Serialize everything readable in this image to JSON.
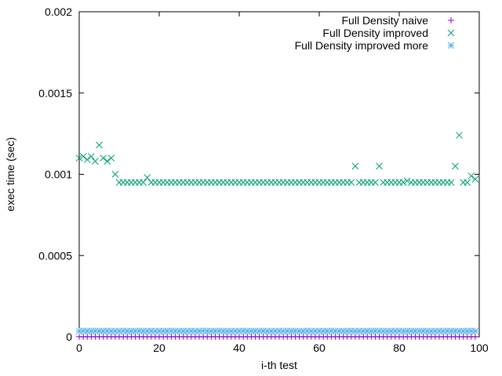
{
  "chart_data": {
    "type": "scatter",
    "xlabel": "i-th test",
    "ylabel": "exec time (sec)",
    "xlim": [
      0,
      100
    ],
    "ylim": [
      0,
      0.002
    ],
    "x_ticks": [
      0,
      20,
      40,
      60,
      80,
      100
    ],
    "x_tick_labels": [
      "0",
      "20",
      "40",
      "60",
      "80",
      "100"
    ],
    "y_ticks": [
      0,
      0.0005,
      0.001,
      0.0015,
      0.002
    ],
    "y_tick_labels": [
      "0",
      "0.0005",
      "0.001",
      "0.0015",
      "0.002"
    ],
    "grid": false,
    "legend_position": "top-right",
    "series": [
      {
        "name": "Full Density naive",
        "marker": "plus",
        "color": "#9400d3",
        "x": [
          0,
          1,
          2,
          3,
          4,
          5,
          6,
          7,
          8,
          9,
          10,
          11,
          12,
          13,
          14,
          15,
          16,
          17,
          18,
          19,
          20,
          21,
          22,
          23,
          24,
          25,
          26,
          27,
          28,
          29,
          30,
          31,
          32,
          33,
          34,
          35,
          36,
          37,
          38,
          39,
          40,
          41,
          42,
          43,
          44,
          45,
          46,
          47,
          48,
          49,
          50,
          51,
          52,
          53,
          54,
          55,
          56,
          57,
          58,
          59,
          60,
          61,
          62,
          63,
          64,
          65,
          66,
          67,
          68,
          69,
          70,
          71,
          72,
          73,
          74,
          75,
          76,
          77,
          78,
          79,
          80,
          81,
          82,
          83,
          84,
          85,
          86,
          87,
          88,
          89,
          90,
          91,
          92,
          93,
          94,
          95,
          96,
          97,
          98,
          99
        ],
        "y": [
          1e-06,
          1e-06,
          1e-06,
          1e-06,
          1e-06,
          1e-06,
          1e-06,
          1e-06,
          1e-06,
          1e-06,
          1e-06,
          1e-06,
          1e-06,
          1e-06,
          1e-06,
          1e-06,
          1e-06,
          1e-06,
          1e-06,
          1e-06,
          1e-06,
          1e-06,
          1e-06,
          1e-06,
          1e-06,
          1e-06,
          1e-06,
          1e-06,
          1e-06,
          1e-06,
          1e-06,
          1e-06,
          1e-06,
          1e-06,
          1e-06,
          1e-06,
          1e-06,
          1e-06,
          1e-06,
          1e-06,
          1e-06,
          1e-06,
          1e-06,
          1e-06,
          1e-06,
          1e-06,
          1e-06,
          1e-06,
          1e-06,
          1e-06,
          1e-06,
          1e-06,
          1e-06,
          1e-06,
          1e-06,
          1e-06,
          1e-06,
          1e-06,
          1e-06,
          1e-06,
          1e-06,
          1e-06,
          1e-06,
          1e-06,
          1e-06,
          1e-06,
          1e-06,
          1e-06,
          1e-06,
          1e-06,
          1e-06,
          1e-06,
          1e-06,
          1e-06,
          1e-06,
          1e-06,
          1e-06,
          1e-06,
          1e-06,
          1e-06,
          1e-06,
          1e-06,
          1e-06,
          1e-06,
          1e-06,
          1e-06,
          1e-06,
          1e-06,
          1e-06,
          1e-06,
          1e-06,
          1e-06,
          1e-06,
          1e-06,
          1e-06,
          1e-06,
          1e-06,
          1e-06,
          1e-06,
          1e-06
        ]
      },
      {
        "name": "Full Density improved",
        "marker": "cross",
        "color": "#009e73",
        "x": [
          0,
          1,
          2,
          3,
          4,
          5,
          6,
          7,
          8,
          9,
          10,
          11,
          12,
          13,
          14,
          15,
          16,
          17,
          18,
          19,
          20,
          21,
          22,
          23,
          24,
          25,
          26,
          27,
          28,
          29,
          30,
          31,
          32,
          33,
          34,
          35,
          36,
          37,
          38,
          39,
          40,
          41,
          42,
          43,
          44,
          45,
          46,
          47,
          48,
          49,
          50,
          51,
          52,
          53,
          54,
          55,
          56,
          57,
          58,
          59,
          60,
          61,
          62,
          63,
          64,
          65,
          66,
          67,
          68,
          69,
          70,
          71,
          72,
          73,
          74,
          75,
          76,
          77,
          78,
          79,
          80,
          81,
          82,
          83,
          84,
          85,
          86,
          87,
          88,
          89,
          90,
          91,
          92,
          93,
          94,
          95,
          96,
          97,
          98,
          99
        ],
        "y": [
          0.0011,
          0.00111,
          0.00109,
          0.00111,
          0.00108,
          0.00118,
          0.0011,
          0.00108,
          0.0011,
          0.001,
          0.00095,
          0.00095,
          0.00095,
          0.00095,
          0.00095,
          0.00095,
          0.00095,
          0.00098,
          0.00095,
          0.00095,
          0.00095,
          0.00095,
          0.00095,
          0.00095,
          0.00095,
          0.00095,
          0.00095,
          0.00095,
          0.00095,
          0.00095,
          0.00095,
          0.00095,
          0.00095,
          0.00095,
          0.00095,
          0.00095,
          0.00095,
          0.00095,
          0.00095,
          0.00095,
          0.00095,
          0.00095,
          0.00095,
          0.00095,
          0.00095,
          0.00095,
          0.00095,
          0.00095,
          0.00095,
          0.00095,
          0.00095,
          0.00095,
          0.00095,
          0.00095,
          0.00095,
          0.00095,
          0.00095,
          0.00095,
          0.00095,
          0.00095,
          0.00095,
          0.00095,
          0.00095,
          0.00095,
          0.00095,
          0.00095,
          0.00095,
          0.00095,
          0.00095,
          0.00105,
          0.00095,
          0.00095,
          0.00095,
          0.00095,
          0.00095,
          0.00105,
          0.00095,
          0.00095,
          0.00095,
          0.00095,
          0.00095,
          0.00095,
          0.00096,
          0.00095,
          0.00095,
          0.00095,
          0.00095,
          0.00095,
          0.00095,
          0.00095,
          0.00095,
          0.00095,
          0.00095,
          0.00095,
          0.00105,
          0.00124,
          0.00095,
          0.00095,
          0.00099,
          0.00097
        ]
      },
      {
        "name": "Full Density improved more",
        "marker": "star",
        "color": "#56b4e9",
        "x": [
          0,
          1,
          2,
          3,
          4,
          5,
          6,
          7,
          8,
          9,
          10,
          11,
          12,
          13,
          14,
          15,
          16,
          17,
          18,
          19,
          20,
          21,
          22,
          23,
          24,
          25,
          26,
          27,
          28,
          29,
          30,
          31,
          32,
          33,
          34,
          35,
          36,
          37,
          38,
          39,
          40,
          41,
          42,
          43,
          44,
          45,
          46,
          47,
          48,
          49,
          50,
          51,
          52,
          53,
          54,
          55,
          56,
          57,
          58,
          59,
          60,
          61,
          62,
          63,
          64,
          65,
          66,
          67,
          68,
          69,
          70,
          71,
          72,
          73,
          74,
          75,
          76,
          77,
          78,
          79,
          80,
          81,
          82,
          83,
          84,
          85,
          86,
          87,
          88,
          89,
          90,
          91,
          92,
          93,
          94,
          95,
          96,
          97,
          98,
          99
        ],
        "y": [
          3.5e-05,
          3.6e-05,
          3.5e-05,
          3.5e-05,
          3.6e-05,
          3.5e-05,
          3.5e-05,
          3.6e-05,
          3.5e-05,
          3.5e-05,
          3.5e-05,
          3.6e-05,
          3.5e-05,
          3.5e-05,
          3.5e-05,
          3.6e-05,
          3.5e-05,
          3.5e-05,
          3.6e-05,
          3.5e-05,
          3.5e-05,
          3.5e-05,
          3.5e-05,
          3.6e-05,
          3.5e-05,
          3.5e-05,
          3.5e-05,
          3.5e-05,
          3.6e-05,
          3.5e-05,
          3.5e-05,
          3.7e-05,
          3.5e-05,
          3.5e-05,
          3.5e-05,
          3.6e-05,
          3.5e-05,
          3.5e-05,
          3.5e-05,
          3.5e-05,
          3.5e-05,
          3.6e-05,
          3.5e-05,
          3.5e-05,
          3.5e-05,
          3.5e-05,
          3.6e-05,
          3.5e-05,
          3.5e-05,
          3.5e-05,
          3.5e-05,
          3.5e-05,
          3.6e-05,
          3.5e-05,
          3.5e-05,
          3.5e-05,
          3.5e-05,
          3.6e-05,
          3.5e-05,
          3.5e-05,
          3.5e-05,
          3.5e-05,
          3.5e-05,
          3.6e-05,
          3.5e-05,
          3.5e-05,
          3.5e-05,
          3.5e-05,
          3.6e-05,
          3.5e-05,
          3.5e-05,
          3.5e-05,
          3.5e-05,
          3.5e-05,
          3.6e-05,
          3.5e-05,
          3.5e-05,
          3.5e-05,
          3.5e-05,
          3.5e-05,
          3.6e-05,
          3.5e-05,
          3.5e-05,
          3.5e-05,
          3.5e-05,
          3.5e-05,
          3.6e-05,
          3.5e-05,
          3.5e-05,
          3.5e-05,
          3.5e-05,
          3.5e-05,
          3.6e-05,
          3.5e-05,
          3.5e-05,
          3.5e-05,
          3.5e-05,
          3.5e-05,
          3.6e-05,
          3.5e-05
        ]
      }
    ]
  }
}
